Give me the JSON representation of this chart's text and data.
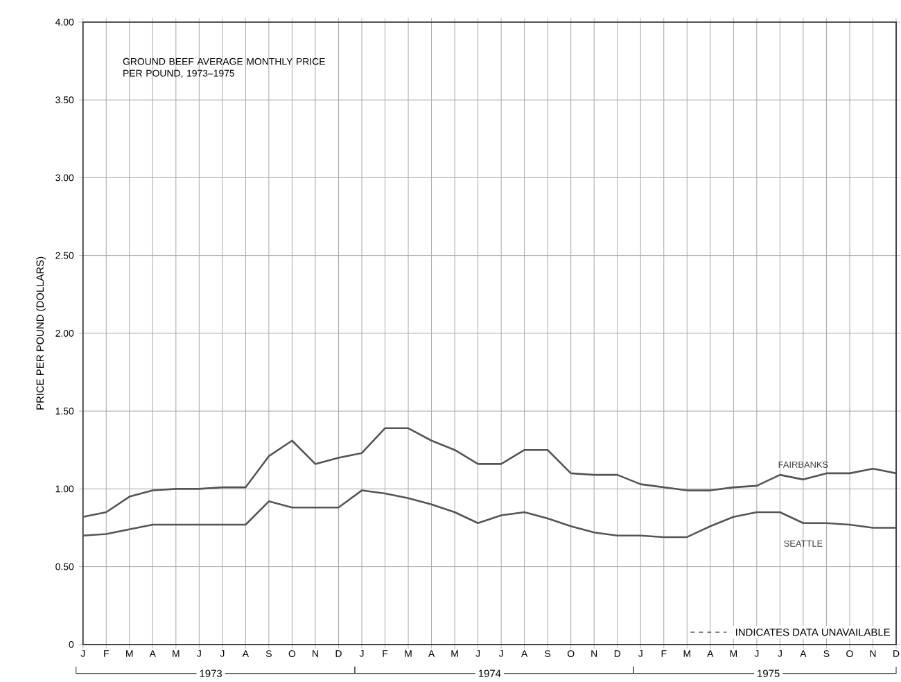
{
  "chart_data": {
    "type": "line",
    "title": "GROUND BEEF AVERAGE MONTHLY PRICE PER POUND, 1973–1975",
    "ylabel": "PRICE PER POUND (DOLLARS)",
    "categories": [
      "J",
      "F",
      "M",
      "A",
      "M",
      "J",
      "J",
      "A",
      "S",
      "O",
      "N",
      "D",
      "J",
      "F",
      "M",
      "A",
      "M",
      "J",
      "J",
      "A",
      "S",
      "O",
      "N",
      "D",
      "J",
      "F",
      "M",
      "A",
      "M",
      "J",
      "J",
      "A",
      "S",
      "O",
      "N",
      "D"
    ],
    "series": [
      {
        "name": "FAIRBANKS",
        "color": "#555555",
        "values": [
          0.82,
          0.85,
          0.95,
          0.99,
          1.0,
          1.0,
          1.01,
          1.01,
          1.21,
          1.31,
          1.16,
          1.2,
          1.23,
          1.39,
          1.39,
          1.31,
          1.25,
          1.16,
          1.16,
          1.25,
          1.25,
          1.1,
          1.09,
          1.09,
          1.03,
          1.01,
          0.99,
          0.99,
          1.01,
          1.02,
          1.09,
          1.06,
          1.1,
          1.1,
          1.13,
          1.1
        ]
      },
      {
        "name": "SEATTLE",
        "color": "#555555",
        "values": [
          0.7,
          0.71,
          0.74,
          0.77,
          0.77,
          0.77,
          0.77,
          0.77,
          0.92,
          0.88,
          0.88,
          0.88,
          0.99,
          0.97,
          0.94,
          0.9,
          0.85,
          0.78,
          0.83,
          0.85,
          0.81,
          0.76,
          0.72,
          0.7,
          0.7,
          0.69,
          0.69,
          0.76,
          0.82,
          0.85,
          0.85,
          0.78,
          0.78,
          0.77,
          0.75,
          0.75
        ]
      }
    ],
    "ylim": [
      0,
      4
    ],
    "yticks": [
      0,
      {
        "value": 0.5,
        "label": "0.50"
      },
      {
        "value": 1,
        "label": "1.00"
      },
      {
        "value": 1.5,
        "label": "1.50"
      },
      {
        "value": 2,
        "label": "2.00"
      },
      {
        "value": 2.5,
        "label": "2.50"
      },
      {
        "value": 3,
        "label": "3.00"
      },
      {
        "value": 3.5,
        "label": "3.50"
      },
      {
        "value": 4,
        "label": "4.00"
      }
    ],
    "annotations": [
      "1973",
      "1974",
      "1975",
      "INDICATES DATA UNAVAILABLE"
    ],
    "grid": true,
    "marker": "none",
    "line_style": "solid"
  }
}
